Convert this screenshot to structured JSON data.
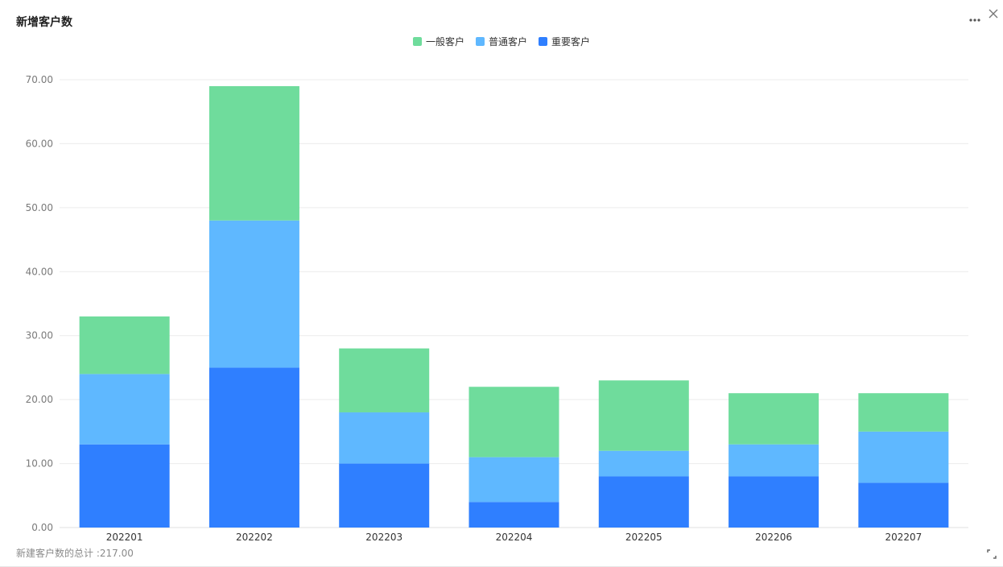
{
  "header": {
    "title": "新增客户数",
    "more_icon": "more-dots-icon",
    "close_icon": "close-icon"
  },
  "footer": {
    "total_text": "新建客户数的总计 :217.00",
    "expand_icon": "expand-corner-icon"
  },
  "colors": {
    "一般客户": "#6fdc9c",
    "普通客户": "#5fb8ff",
    "重要客户": "#2f7fff",
    "grid": "#ececec",
    "axis_text": "#7a7a7a"
  },
  "chart_data": {
    "type": "bar",
    "stacked": true,
    "title": "新增客户数",
    "xlabel": "",
    "ylabel": "",
    "categories": [
      "202201",
      "202202",
      "202203",
      "202204",
      "202205",
      "202206",
      "202207"
    ],
    "series": [
      {
        "name": "重要客户",
        "values": [
          13,
          25,
          10,
          4,
          8,
          8,
          7
        ]
      },
      {
        "name": "普通客户",
        "values": [
          11,
          23,
          8,
          7,
          4,
          5,
          8
        ]
      },
      {
        "name": "一般客户",
        "values": [
          9,
          21,
          10,
          11,
          11,
          8,
          6
        ]
      }
    ],
    "legend_order": [
      "一般客户",
      "普通客户",
      "重要客户"
    ],
    "ylim": [
      0,
      70
    ],
    "yticks": [
      "0.00",
      "10.00",
      "20.00",
      "30.00",
      "40.00",
      "50.00",
      "60.00",
      "70.00"
    ],
    "grid": true,
    "legend_position": "top-center"
  }
}
